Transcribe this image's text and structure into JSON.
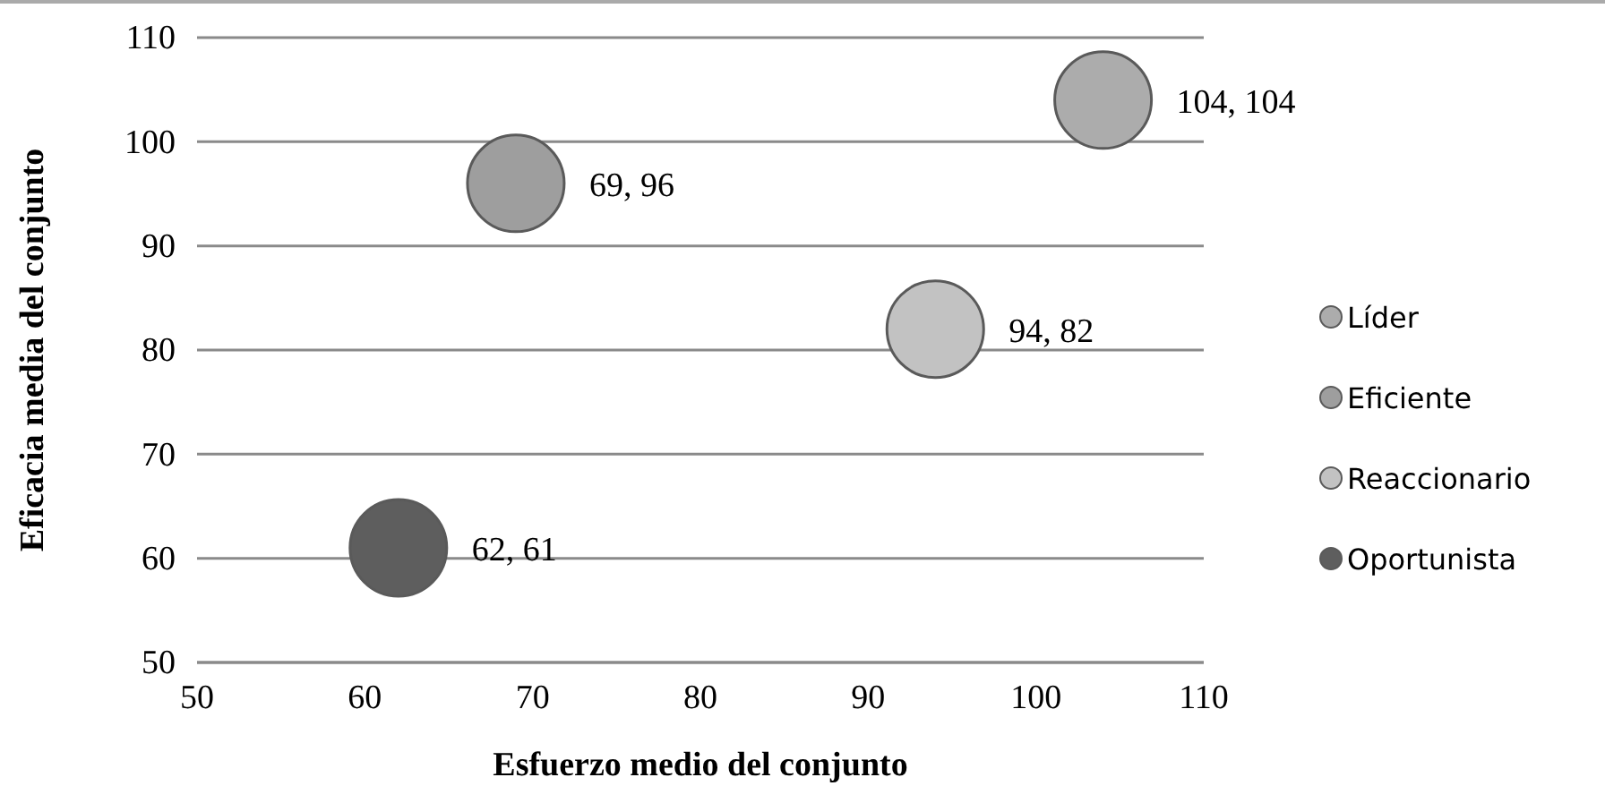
{
  "chart_data": {
    "type": "scatter",
    "xlabel": "Esfuerzo medio del conjunto",
    "ylabel": "Eficacia media del conjunto",
    "xlim": [
      50,
      110
    ],
    "xticks": [
      50,
      60,
      70,
      80,
      90,
      100,
      110
    ],
    "ylim": [
      50,
      110
    ],
    "yticks": [
      50,
      60,
      70,
      80,
      90,
      100,
      110
    ],
    "grid": "y",
    "legend": "right",
    "marker": "circle",
    "series": [
      {
        "name": "Líder",
        "color": "#acacac",
        "x": [
          104
        ],
        "values": [
          104
        ],
        "value_labels": [
          "104, 104"
        ]
      },
      {
        "name": "Eficiente",
        "color": "#9e9e9e",
        "x": [
          69
        ],
        "values": [
          96
        ],
        "value_labels": [
          "69, 96"
        ]
      },
      {
        "name": "Reaccionario",
        "color": "#c2c2c2",
        "x": [
          94
        ],
        "values": [
          82
        ],
        "value_labels": [
          "94, 82"
        ]
      },
      {
        "name": "Oportunista",
        "color": "#5e5e5e",
        "x": [
          62
        ],
        "values": [
          61
        ],
        "value_labels": [
          "62, 61"
        ]
      }
    ]
  }
}
